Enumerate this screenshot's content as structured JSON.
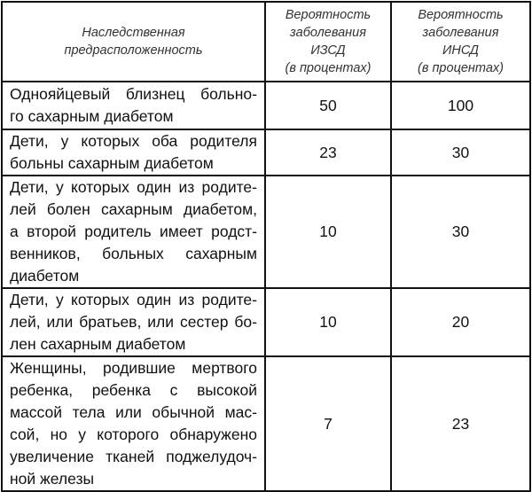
{
  "headers": [
    [
      "Наследственная",
      "предрасположенность"
    ],
    [
      "Вероятность",
      "заболевания",
      "ИЗСД",
      "(в процентах)"
    ],
    [
      "Вероятность",
      "заболевания",
      "ИНСД",
      "(в процентах)"
    ]
  ],
  "rows": [
    {
      "desc": [
        "Однояйцевый близнец больно-",
        "го сахарным диабетом"
      ],
      "izsd": "50",
      "insd": "100"
    },
    {
      "desc": [
        "Дети, у которых оба родителя",
        "больны сахарным диабетом"
      ],
      "izsd": "23",
      "insd": "30"
    },
    {
      "desc": [
        "Дети, у которых один из родите-",
        "лей болен сахарным диабетом,",
        "а второй родитель имеет родст-",
        "венников, больных сахарным",
        "диабетом"
      ],
      "izsd": "10",
      "insd": "30"
    },
    {
      "desc": [
        "Дети, у которых один из родите-",
        "лей, или братьев, или сестер бо-",
        "лен сахарным диабетом"
      ],
      "izsd": "10",
      "insd": "20"
    },
    {
      "desc": [
        "Женщины, родившие мертвого",
        "ребенка, ребенка с высокой",
        "массой тела или обычной мас-",
        "сой, но у которого обнаружено",
        "увеличение тканей поджелудоч-",
        "ной железы"
      ],
      "izsd": "7",
      "insd": "23"
    }
  ]
}
